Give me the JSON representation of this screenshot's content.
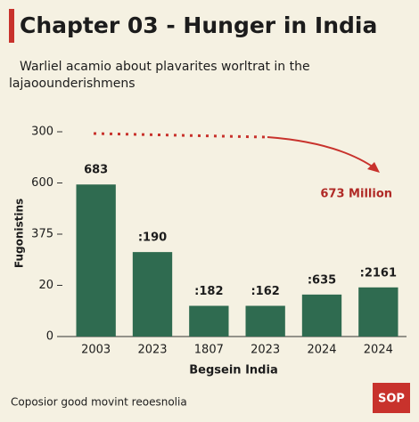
{
  "chart_data": {
    "type": "bar",
    "title": "Chapter 03 - Hunger in India",
    "subtitle": [
      "Warliel acamio about plavarites worltrat in the",
      "lajaoounderishmens"
    ],
    "y_label": "Fugonistins",
    "x_label": "Begsein India",
    "categories": [
      "2003",
      "2023",
      "1807",
      "2023",
      "2024",
      "2024"
    ],
    "values": [
      2.97,
      1.65,
      0.6,
      0.6,
      0.82,
      0.96
    ],
    "bar_labels": [
      "683",
      ":190",
      ":182",
      ":162",
      ":635",
      ":2161"
    ],
    "color": "#2f6b50",
    "ylim": [
      0,
      4
    ],
    "yticks": [
      {
        "value": 0,
        "label": "0"
      },
      {
        "value": 1,
        "label": "20"
      },
      {
        "value": 2,
        "label": "375"
      },
      {
        "value": 3,
        "label": "600"
      },
      {
        "value": 4,
        "label": "300"
      }
    ],
    "annotation": "673 Million",
    "footer": "Coposior good movint reoesnolia",
    "badge": "SOP"
  }
}
